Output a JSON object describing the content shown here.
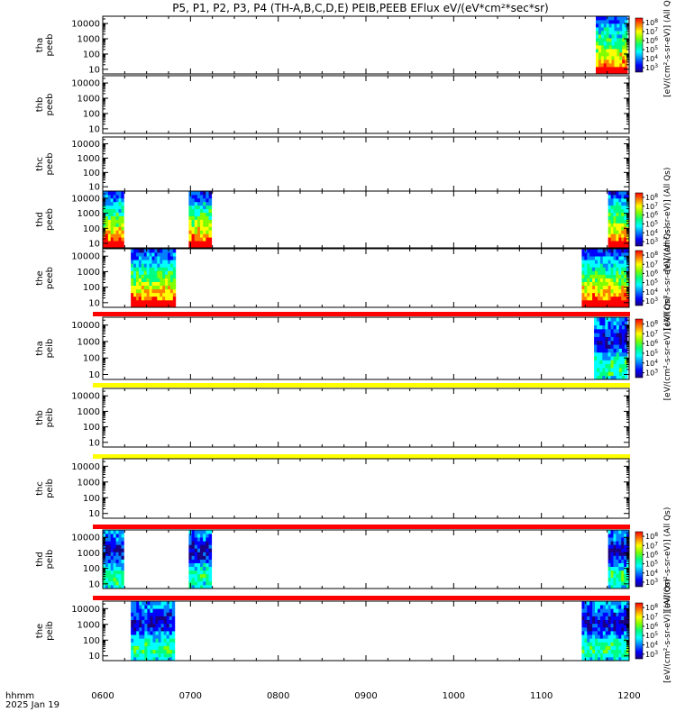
{
  "chart_data": {
    "type": "heatmap",
    "title": "P5, P1, P2, P3, P4 (TH-A,B,C,D,E) PEIB,PEEB EFlux eV/(eV*cm²*sec*sr)",
    "x_axis": {
      "ticks": [
        "0600",
        "0700",
        "0800",
        "0900",
        "1000",
        "1100",
        "1200"
      ],
      "range_hours": [
        6,
        12
      ],
      "corner_label_1": "hhmm",
      "corner_label_2": "2025 Jan 19"
    },
    "y_axis": {
      "scale": "log",
      "range": [
        5,
        30000
      ],
      "ticks": [
        "10",
        "100",
        "1000",
        "10000"
      ]
    },
    "colorbar_exponents": [
      "3",
      "4",
      "5",
      "6",
      "7",
      "8"
    ],
    "panels": [
      {
        "label_line1": "tha",
        "label_line2": "peeb",
        "colorbar_title": "[eV/(cm²-s-sr-eV)] (All Qs)",
        "has_colorbar": true,
        "top_strip": null,
        "data_intervals_hours": [
          [
            11.62,
            11.98
          ]
        ]
      },
      {
        "label_line1": "thb",
        "label_line2": "peeb",
        "colorbar_title": "",
        "has_colorbar": false,
        "top_strip": null,
        "data_intervals_hours": []
      },
      {
        "label_line1": "thc",
        "label_line2": "peeb",
        "colorbar_title": "",
        "has_colorbar": false,
        "top_strip": null,
        "data_intervals_hours": []
      },
      {
        "label_line1": "thd",
        "label_line2": "peeb",
        "colorbar_title": "[eV/(cm²-s-sr-eV)] (All Qs)",
        "has_colorbar": true,
        "top_strip": null,
        "data_intervals_hours": [
          [
            6.0,
            6.24
          ],
          [
            6.98,
            7.24
          ],
          [
            11.76,
            12.0
          ]
        ]
      },
      {
        "label_line1": "the",
        "label_line2": "peeb",
        "colorbar_title": "[eV/(cm²-s-sr-eV)] (All Qs)",
        "has_colorbar": true,
        "top_strip": null,
        "data_intervals_hours": [
          [
            6.32,
            6.83
          ],
          [
            11.46,
            12.0
          ]
        ]
      },
      {
        "label_line1": "tha",
        "label_line2": "peib",
        "colorbar_title": "[eV/(cm²-s-sr-eV)] (All Qs)",
        "has_colorbar": true,
        "top_strip": "#ff0000",
        "data_intervals_hours": [
          [
            11.6,
            11.98
          ]
        ]
      },
      {
        "label_line1": "thb",
        "label_line2": "peib",
        "colorbar_title": "",
        "has_colorbar": false,
        "top_strip": "#ffff00",
        "data_intervals_hours": []
      },
      {
        "label_line1": "thc",
        "label_line2": "peib",
        "colorbar_title": "",
        "has_colorbar": false,
        "top_strip": "#ffff00",
        "data_intervals_hours": []
      },
      {
        "label_line1": "thd",
        "label_line2": "peib",
        "colorbar_title": "[eV/(cm²-s-sr-eV)] (All Qs)",
        "has_colorbar": true,
        "top_strip": "#ff0000",
        "data_intervals_hours": [
          [
            6.0,
            6.24
          ],
          [
            6.98,
            7.24
          ],
          [
            11.76,
            12.0
          ]
        ]
      },
      {
        "label_line1": "the",
        "label_line2": "peib",
        "colorbar_title": "[eV/(cm²-s-sr-eV)] (All Qs)",
        "has_colorbar": true,
        "top_strip": "#ff0000",
        "data_intervals_hours": [
          [
            6.32,
            6.82
          ],
          [
            11.46,
            12.0
          ]
        ]
      }
    ]
  }
}
